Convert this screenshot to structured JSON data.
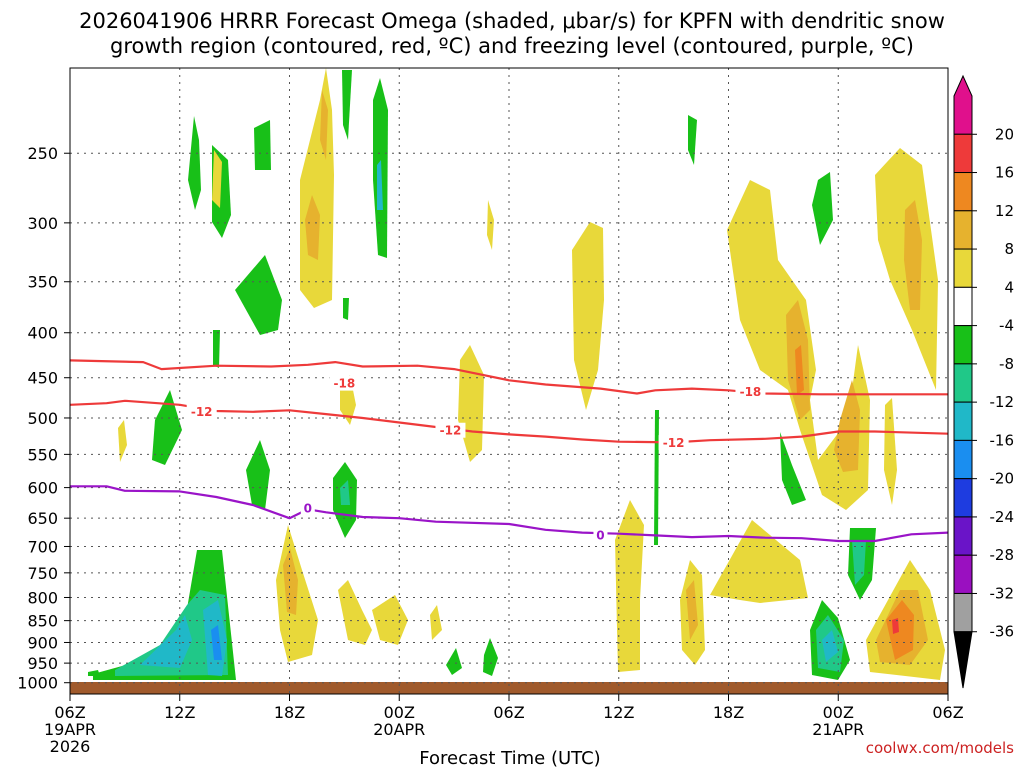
{
  "chart_data": {
    "type": "heatmap",
    "title_line1": "2026041906 HRRR Forecast Omega (shaded, μbar/s) for KPFN with dendritic snow",
    "title_line2": "growth region (contoured, red, ºC) and freezing level (contoured, purple, ºC)",
    "xlabel": "Forecast Time (UTC)",
    "credit": "coolwx.com/models",
    "x_hours": [
      0,
      48
    ],
    "y_range": [
      1030,
      200
    ],
    "x_ticks": [
      {
        "h": 0,
        "lines": [
          "06Z",
          "19APR",
          "2026"
        ]
      },
      {
        "h": 6,
        "lines": [
          "12Z"
        ]
      },
      {
        "h": 12,
        "lines": [
          "18Z"
        ]
      },
      {
        "h": 18,
        "lines": [
          "00Z",
          "20APR"
        ]
      },
      {
        "h": 24,
        "lines": [
          "06Z"
        ]
      },
      {
        "h": 30,
        "lines": [
          "12Z"
        ]
      },
      {
        "h": 36,
        "lines": [
          "18Z"
        ]
      },
      {
        "h": 42,
        "lines": [
          "00Z",
          "21APR"
        ]
      },
      {
        "h": 48,
        "lines": [
          "06Z"
        ]
      }
    ],
    "y_ticks": [
      {
        "p": 250,
        "label": "250"
      },
      {
        "p": 300,
        "label": "300"
      },
      {
        "p": 350,
        "label": "350"
      },
      {
        "p": 400,
        "label": "400"
      },
      {
        "p": 450,
        "label": "450"
      },
      {
        "p": 500,
        "label": "500"
      },
      {
        "p": 550,
        "label": "550"
      },
      {
        "p": 600,
        "label": "600"
      },
      {
        "p": 650,
        "label": "650"
      },
      {
        "p": 700,
        "label": "700"
      },
      {
        "p": 750,
        "label": "750"
      },
      {
        "p": 800,
        "label": "800"
      },
      {
        "p": 850,
        "label": "850"
      },
      {
        "p": 900,
        "label": "900"
      },
      {
        "p": 950,
        "label": "950"
      },
      {
        "p": 1000,
        "label": "1000"
      }
    ],
    "colorbar": {
      "bins": [
        {
          "lo": 20,
          "hi": 24,
          "color": "#e0108c"
        },
        {
          "lo": 16,
          "hi": 20,
          "color": "#ee3a3a"
        },
        {
          "lo": 12,
          "hi": 16,
          "color": "#ee8820"
        },
        {
          "lo": 8,
          "hi": 12,
          "color": "#e6b22e"
        },
        {
          "lo": 4,
          "hi": 8,
          "color": "#e8d83a"
        },
        {
          "lo": -4,
          "hi": 4,
          "color": "#ffffff"
        },
        {
          "lo": -8,
          "hi": -4,
          "color": "#18c018"
        },
        {
          "lo": -12,
          "hi": -8,
          "color": "#20c888"
        },
        {
          "lo": -16,
          "hi": -12,
          "color": "#20b8c8"
        },
        {
          "lo": -20,
          "hi": -16,
          "color": "#1a8ef0"
        },
        {
          "lo": -24,
          "hi": -20,
          "color": "#1e3ce0"
        },
        {
          "lo": -28,
          "hi": -24,
          "color": "#6a14c8"
        },
        {
          "lo": -32,
          "hi": -28,
          "color": "#9a10c0"
        },
        {
          "lo": -36,
          "hi": -32,
          "color": "#a0a0a0"
        },
        {
          "lo": -40,
          "hi": -36,
          "color": "#000000"
        }
      ],
      "labels": [
        "20",
        "16",
        "12",
        "8",
        "4",
        "-4",
        "-8",
        "-12",
        "-16",
        "-20",
        "-24",
        "-28",
        "-32",
        "-36"
      ]
    },
    "contours": [
      {
        "name": "-18",
        "color": "#ee3a3a",
        "label": "-18",
        "label_at": [
          {
            "h": 15,
            "p": 457
          },
          {
            "h": 37.2,
            "p": 467
          }
        ],
        "points": [
          [
            0,
            430
          ],
          [
            4,
            432
          ],
          [
            5,
            440
          ],
          [
            8,
            436
          ],
          [
            11,
            437
          ],
          [
            13,
            435
          ],
          [
            14.5,
            432
          ],
          [
            16,
            437
          ],
          [
            19,
            436
          ],
          [
            21,
            440
          ],
          [
            24,
            453
          ],
          [
            26,
            458
          ],
          [
            29,
            463
          ],
          [
            31,
            469
          ],
          [
            32,
            465
          ],
          [
            34,
            463
          ],
          [
            36,
            465
          ],
          [
            38,
            469
          ],
          [
            41,
            470
          ],
          [
            44,
            470
          ],
          [
            48,
            470
          ]
        ]
      },
      {
        "name": "-12",
        "color": "#ee3a3a",
        "label": "-12",
        "label_at": [
          {
            "h": 7.2,
            "p": 492
          },
          {
            "h": 20.8,
            "p": 517
          },
          {
            "h": 33,
            "p": 534
          }
        ],
        "points": [
          [
            0,
            483
          ],
          [
            2,
            481
          ],
          [
            3,
            478
          ],
          [
            6,
            483
          ],
          [
            8,
            491
          ],
          [
            10,
            492
          ],
          [
            12,
            490
          ],
          [
            14,
            495
          ],
          [
            16,
            500
          ],
          [
            18,
            506
          ],
          [
            20,
            512
          ],
          [
            22,
            518
          ],
          [
            24,
            522
          ],
          [
            26,
            525
          ],
          [
            28,
            529
          ],
          [
            30,
            532
          ],
          [
            33,
            533
          ],
          [
            35,
            530
          ],
          [
            38,
            528
          ],
          [
            40,
            525
          ],
          [
            42,
            518
          ],
          [
            44,
            518
          ],
          [
            48,
            521
          ]
        ]
      },
      {
        "name": "0",
        "color": "#9a14c8",
        "label": "0",
        "label_at": [
          {
            "h": 13,
            "p": 634
          },
          {
            "h": 29,
            "p": 680
          }
        ],
        "points": [
          [
            0,
            598
          ],
          [
            2,
            598
          ],
          [
            3,
            605
          ],
          [
            6,
            606
          ],
          [
            8,
            615
          ],
          [
            10,
            628
          ],
          [
            12,
            650
          ],
          [
            13,
            635
          ],
          [
            14,
            640
          ],
          [
            16,
            648
          ],
          [
            18,
            650
          ],
          [
            20,
            656
          ],
          [
            24,
            660
          ],
          [
            26,
            670
          ],
          [
            28,
            675
          ],
          [
            30,
            677
          ],
          [
            32,
            680
          ],
          [
            34,
            683
          ],
          [
            36,
            681
          ],
          [
            38,
            684
          ],
          [
            40,
            685
          ],
          [
            42,
            690
          ],
          [
            44,
            690
          ],
          [
            46,
            678
          ],
          [
            48,
            675
          ]
        ]
      }
    ]
  }
}
